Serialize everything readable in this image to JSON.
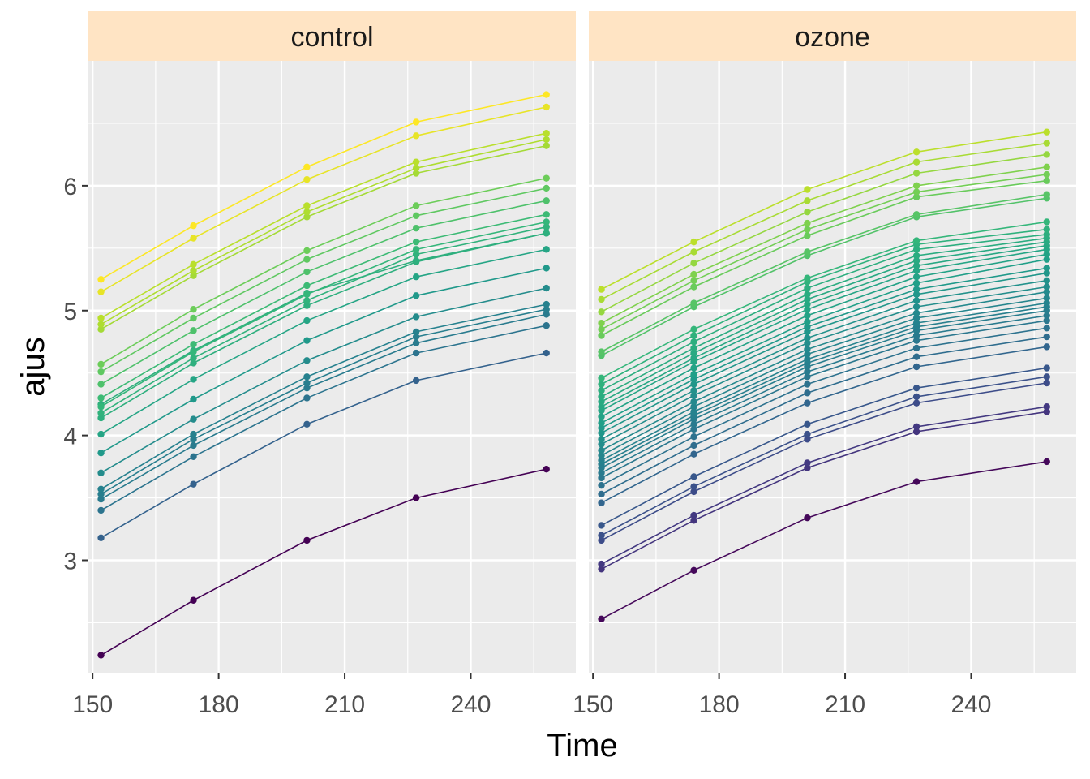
{
  "chart_data": {
    "type": "line",
    "xlabel": "Time",
    "ylabel": "ajus",
    "x": [
      152,
      174,
      201,
      227,
      258
    ],
    "xlim": [
      149,
      265
    ],
    "ylim": [
      2.1,
      7.0
    ],
    "xticks": [
      150,
      180,
      210,
      240
    ],
    "yticks": [
      3,
      4,
      5,
      6
    ],
    "grid": true,
    "legend": "none",
    "colormap": "viridis",
    "colors": {
      "panel_bg": "#ebebeb",
      "grid_major": "#ffffff",
      "strip_bg": "#ffe4c4",
      "tick_text": "#4d4d4d"
    },
    "panels": [
      {
        "name": "control",
        "series": [
          {
            "values": [
              2.24,
              2.68,
              3.16,
              3.5,
              3.73
            ]
          },
          {
            "values": [
              3.18,
              3.61,
              4.09,
              4.44,
              4.66
            ]
          },
          {
            "values": [
              3.4,
              3.83,
              4.3,
              4.66,
              4.88
            ]
          },
          {
            "values": [
              3.49,
              3.92,
              4.38,
              4.74,
              4.97
            ]
          },
          {
            "values": [
              3.53,
              3.97,
              4.42,
              4.79,
              5.01
            ]
          },
          {
            "values": [
              3.57,
              4.01,
              4.47,
              4.83,
              5.05
            ]
          },
          {
            "values": [
              4.3,
              4.73,
              5.2,
              5.55,
              5.77
            ]
          },
          {
            "values": [
              3.7,
              4.13,
              4.6,
              4.95,
              5.18
            ]
          },
          {
            "values": [
              4.25,
              4.68,
              5.14,
              5.4,
              5.62
            ]
          },
          {
            "values": [
              3.86,
              4.29,
              4.76,
              5.12,
              5.34
            ]
          },
          {
            "values": [
              4.01,
              4.45,
              4.92,
              5.27,
              5.49
            ]
          },
          {
            "values": [
              4.14,
              4.58,
              5.04,
              5.39,
              5.62
            ]
          },
          {
            "values": [
              4.18,
              4.62,
              5.08,
              5.45,
              5.67
            ]
          },
          {
            "values": [
              4.23,
              4.67,
              5.13,
              5.49,
              5.71
            ]
          },
          {
            "values": [
              4.41,
              4.84,
              5.31,
              5.66,
              5.88
            ]
          },
          {
            "values": [
              4.51,
              4.94,
              5.41,
              5.76,
              5.98
            ]
          },
          {
            "values": [
              4.57,
              5.01,
              5.48,
              5.84,
              6.06
            ]
          },
          {
            "values": [
              4.85,
              5.28,
              5.75,
              6.1,
              6.32
            ]
          },
          {
            "values": [
              4.89,
              5.32,
              5.79,
              6.14,
              6.37
            ]
          },
          {
            "values": [
              4.94,
              5.37,
              5.84,
              6.19,
              6.42
            ]
          },
          {
            "values": [
              5.15,
              5.58,
              6.05,
              6.4,
              6.63
            ]
          },
          {
            "values": [
              5.25,
              5.68,
              6.15,
              6.51,
              6.73
            ]
          }
        ]
      },
      {
        "name": "ozone",
        "series": [
          {
            "values": [
              2.53,
              2.92,
              3.34,
              3.63,
              3.79
            ]
          },
          {
            "values": [
              2.93,
              3.32,
              3.74,
              4.03,
              4.19
            ]
          },
          {
            "values": [
              2.97,
              3.36,
              3.78,
              4.07,
              4.23
            ]
          },
          {
            "values": [
              3.16,
              3.55,
              3.97,
              4.26,
              4.42
            ]
          },
          {
            "values": [
              3.2,
              3.59,
              4.01,
              4.31,
              4.47
            ]
          },
          {
            "values": [
              3.28,
              3.67,
              4.09,
              4.38,
              4.54
            ]
          },
          {
            "values": [
              3.46,
              3.85,
              4.26,
              4.55,
              4.71
            ]
          },
          {
            "values": [
              3.53,
              3.92,
              4.34,
              4.63,
              4.79
            ]
          },
          {
            "values": [
              3.6,
              3.99,
              4.41,
              4.7,
              4.86
            ]
          },
          {
            "values": [
              3.66,
              4.05,
              4.47,
              4.76,
              4.92
            ]
          },
          {
            "values": [
              3.7,
              4.09,
              4.51,
              4.8,
              4.96
            ]
          },
          {
            "values": [
              3.74,
              4.13,
              4.55,
              4.84,
              5.0
            ]
          },
          {
            "values": [
              3.77,
              4.16,
              4.58,
              4.87,
              5.03
            ]
          },
          {
            "values": [
              3.8,
              4.19,
              4.61,
              4.9,
              5.06
            ]
          },
          {
            "values": [
              3.84,
              4.23,
              4.65,
              4.94,
              5.1
            ]
          },
          {
            "values": [
              3.88,
              4.27,
              4.69,
              4.98,
              5.15
            ]
          },
          {
            "values": [
              3.93,
              4.32,
              4.74,
              5.03,
              5.19
            ]
          },
          {
            "values": [
              3.97,
              4.36,
              4.78,
              5.08,
              5.24
            ]
          },
          {
            "values": [
              4.02,
              4.41,
              4.83,
              5.13,
              5.3
            ]
          },
          {
            "values": [
              4.06,
              4.45,
              4.87,
              5.17,
              5.34
            ]
          },
          {
            "values": [
              4.1,
              4.49,
              4.91,
              5.22,
              5.41
            ]
          },
          {
            "values": [
              4.15,
              4.54,
              4.96,
              5.27,
              5.45
            ]
          },
          {
            "values": [
              4.2,
              4.59,
              5.01,
              5.32,
              5.49
            ]
          },
          {
            "values": [
              4.23,
              4.62,
              5.05,
              5.36,
              5.52
            ]
          },
          {
            "values": [
              4.27,
              4.66,
              5.09,
              5.4,
              5.55
            ]
          },
          {
            "values": [
              4.31,
              4.7,
              5.13,
              5.44,
              5.58
            ]
          },
          {
            "values": [
              4.36,
              4.75,
              5.18,
              5.49,
              5.61
            ]
          },
          {
            "values": [
              4.41,
              4.8,
              5.23,
              5.53,
              5.65
            ]
          },
          {
            "values": [
              4.46,
              4.85,
              5.26,
              5.56,
              5.71
            ]
          },
          {
            "values": [
              4.64,
              5.03,
              5.44,
              5.75,
              5.9
            ]
          },
          {
            "values": [
              4.67,
              5.06,
              5.47,
              5.77,
              5.93
            ]
          },
          {
            "values": [
              4.8,
              5.19,
              5.6,
              5.91,
              6.04
            ]
          },
          {
            "values": [
              4.85,
              5.24,
              5.65,
              5.95,
              6.09
            ]
          },
          {
            "values": [
              4.9,
              5.29,
              5.7,
              6.0,
              6.15
            ]
          },
          {
            "values": [
              4.99,
              5.38,
              5.79,
              6.1,
              6.25
            ]
          },
          {
            "values": [
              5.09,
              5.47,
              5.88,
              6.19,
              6.34
            ]
          },
          {
            "values": [
              5.17,
              5.55,
              5.97,
              6.27,
              6.43
            ]
          }
        ]
      }
    ]
  }
}
